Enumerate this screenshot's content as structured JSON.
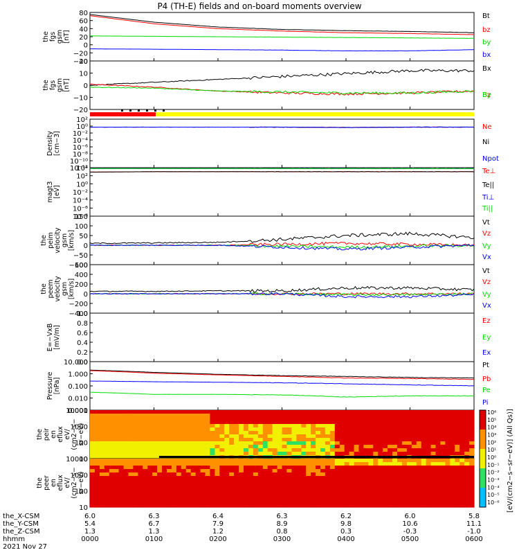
{
  "title": "P4 (TH-E) fields and on-board moments overview",
  "date_label": "2021 Nov 27",
  "colors": {
    "black": "#000000",
    "red": "#ff0000",
    "green": "#00dd00",
    "blue": "#0000ff",
    "yellow": "#ffff00"
  },
  "ephemeris": {
    "rows": [
      {
        "label": "the_X-CSM",
        "values": [
          "6.0",
          "6.3",
          "6.4",
          "6.3",
          "6.2",
          "6.0",
          "5.8"
        ]
      },
      {
        "label": "the_Y-CSM",
        "values": [
          "5.4",
          "6.7",
          "7.9",
          "8.9",
          "9.8",
          "10.6",
          "11.1"
        ]
      },
      {
        "label": "the_Z-CSM",
        "values": [
          "1.3",
          "1.3",
          "1.2",
          "0.8",
          "0.3",
          "-0.3",
          "-1.0"
        ]
      },
      {
        "label": "hhmm",
        "values": [
          "0000",
          "0100",
          "0200",
          "0300",
          "0400",
          "0500",
          "0600"
        ]
      }
    ]
  },
  "chart_data": [
    {
      "type": "line",
      "panel": "fgs_gsm_magnitude",
      "ylabel_lines": [
        "the",
        "fgs",
        "gsm",
        "[nT]"
      ],
      "ylim": [
        -40,
        80
      ],
      "yticks": [
        "80",
        "60",
        "40",
        "20",
        "0",
        "−20",
        "−40"
      ],
      "x_hours": [
        0,
        1,
        2,
        3,
        4,
        5,
        6
      ],
      "series": [
        {
          "name": "Bt",
          "color": "#000000",
          "values": [
            75,
            56,
            44,
            38,
            35,
            33,
            30
          ]
        },
        {
          "name": "bz",
          "color": "#ff0000",
          "values": [
            72,
            52,
            40,
            34,
            30,
            28,
            25
          ]
        },
        {
          "name": "by",
          "color": "#00dd00",
          "values": [
            22,
            21,
            20,
            19,
            18,
            17,
            16
          ]
        },
        {
          "name": "bx",
          "color": "#0000ff",
          "values": [
            -10,
            -11,
            -12,
            -13,
            -15,
            -15,
            -12
          ]
        }
      ]
    },
    {
      "type": "line",
      "panel": "fgs_gsm_components",
      "ylabel_lines": [
        "the",
        "fgs",
        "gsm",
        "[nT]"
      ],
      "ylim": [
        -25,
        25
      ],
      "yticks": [
        "20",
        "10",
        "0",
        "−10",
        "−20"
      ],
      "x_hours": [
        0,
        1,
        2,
        3,
        4,
        5,
        6
      ],
      "series": [
        {
          "name": "Bx",
          "color": "#000000",
          "values": [
            0,
            3,
            6,
            9,
            12,
            15,
            15
          ]
        },
        {
          "name": "Bz",
          "color": "#ff0000",
          "values": [
            1,
            -2,
            -6,
            -8,
            -9,
            -8,
            -6
          ]
        },
        {
          "name": "By",
          "color": "#00dd00",
          "values": [
            -2,
            -3,
            -6,
            -7,
            -8,
            -8,
            -6
          ]
        }
      ]
    },
    {
      "type": "line",
      "panel": "density",
      "ylabel_lines": [
        "Density",
        "[cm−3]"
      ],
      "yscale": "log",
      "yticks": [
        "10²",
        "10⁰",
        "10⁻²",
        "10⁻⁴",
        "10⁻⁶",
        "10⁻⁸",
        "10⁻¹⁰",
        "10⁻¹²"
      ],
      "x_hours": [
        0,
        1,
        2,
        3,
        4,
        5,
        6
      ],
      "series": [
        {
          "name": "Ne",
          "color": "#ff0000",
          "values": [
            0.5,
            0.5,
            0.5,
            0.5,
            0.4,
            0.5,
            0.5
          ]
        },
        {
          "name": "Ni",
          "color": "#000000",
          "values": [
            0.5,
            0.5,
            0.5,
            0.5,
            0.4,
            0.5,
            0.5
          ]
        },
        {
          "name": "Npot",
          "color": "#0000ff",
          "values": [
            0.5,
            0.5,
            0.5,
            0.5,
            0.4,
            0.5,
            0.5
          ]
        }
      ]
    },
    {
      "type": "line",
      "panel": "temperature",
      "ylabel_lines": [
        "magt3",
        "[eV]"
      ],
      "yscale": "log",
      "yticks": [
        "10⁴",
        "10²",
        "10⁰",
        "10⁻²",
        "10⁻⁴",
        "10⁻⁶",
        "10⁻⁸"
      ],
      "x_hours": [
        0,
        1,
        2,
        3,
        4,
        5,
        6
      ],
      "series": [
        {
          "name": "Te⊥",
          "color": "#ff0000",
          "values": [
            800,
            1000,
            1000,
            1000,
            1000,
            1000,
            1000
          ]
        },
        {
          "name": "Te||",
          "color": "#000000",
          "values": [
            800,
            1000,
            1000,
            1000,
            1000,
            1000,
            1000
          ]
        },
        {
          "name": "Ti⊥",
          "color": "#0000ff",
          "values": [
            6000,
            6000,
            6000,
            6000,
            6000,
            6000,
            6000
          ]
        },
        {
          "name": "Ti||",
          "color": "#00dd00",
          "values": [
            6000,
            6000,
            6000,
            6000,
            6000,
            6000,
            6000
          ]
        }
      ]
    },
    {
      "type": "line",
      "panel": "peim_velocity",
      "ylabel_lines": [
        "the",
        "peim",
        "velocity",
        "gsm",
        "[km/s]"
      ],
      "ylim": [
        -100,
        150
      ],
      "yticks": [
        "150",
        "100",
        "50",
        "0",
        "−50",
        "−100"
      ],
      "x_hours": [
        0,
        1,
        2,
        3,
        4,
        5,
        6
      ],
      "series": [
        {
          "name": "Vt",
          "color": "#000000",
          "values": [
            10,
            12,
            15,
            30,
            50,
            60,
            40
          ]
        },
        {
          "name": "Vz",
          "color": "#ff0000",
          "values": [
            0,
            0,
            0,
            5,
            10,
            5,
            0
          ]
        },
        {
          "name": "Vy",
          "color": "#00dd00",
          "values": [
            0,
            0,
            0,
            -5,
            -10,
            -5,
            0
          ]
        },
        {
          "name": "Vx",
          "color": "#0000ff",
          "values": [
            0,
            0,
            0,
            -10,
            -20,
            -10,
            0
          ]
        }
      ]
    },
    {
      "type": "line",
      "panel": "peem_velocity",
      "ylabel_lines": [
        "the",
        "peem",
        "velocity",
        "gsm",
        "[km/s]"
      ],
      "ylim": [
        -400,
        600
      ],
      "yticks": [
        "600",
        "400",
        "200",
        "0",
        "−200",
        "−400"
      ],
      "x_hours": [
        0,
        1,
        2,
        3,
        4,
        5,
        6
      ],
      "series": [
        {
          "name": "Vt",
          "color": "#000000",
          "values": [
            50,
            50,
            60,
            60,
            120,
            120,
            80
          ]
        },
        {
          "name": "Vz",
          "color": "#ff0000",
          "values": [
            0,
            0,
            0,
            0,
            0,
            0,
            0
          ]
        },
        {
          "name": "Vy",
          "color": "#00dd00",
          "values": [
            0,
            0,
            0,
            0,
            -20,
            -20,
            0
          ]
        },
        {
          "name": "Vx",
          "color": "#0000ff",
          "values": [
            0,
            0,
            0,
            0,
            -60,
            -60,
            -20
          ]
        }
      ]
    },
    {
      "type": "line",
      "panel": "electric_field",
      "ylabel_lines": [
        "E=−VxB",
        "[mV/m]"
      ],
      "ylim": [
        0,
        1
      ],
      "yticks": [
        "1.0",
        "0.8",
        "0.6",
        "0.4",
        "0.2",
        "0.0"
      ],
      "x_hours": [
        0,
        6
      ],
      "series": [
        {
          "name": "Ez",
          "color": "#ff0000",
          "values": []
        },
        {
          "name": "Ey",
          "color": "#00dd00",
          "values": []
        },
        {
          "name": "Ex",
          "color": "#0000ff",
          "values": []
        }
      ]
    },
    {
      "type": "line",
      "panel": "pressure",
      "ylabel_lines": [
        "Pressure",
        "[nPa]"
      ],
      "yscale": "log",
      "ylim": [
        0.001,
        10
      ],
      "yticks": [
        "10.000",
        "1.000",
        "0.100",
        "0.010",
        "0.001"
      ],
      "x_hours": [
        0,
        1,
        2,
        3,
        4,
        5,
        6
      ],
      "series": [
        {
          "name": "Pt",
          "color": "#000000",
          "values": [
            2.0,
            1.3,
            0.9,
            0.7,
            0.6,
            0.5,
            0.45
          ]
        },
        {
          "name": "Pb",
          "color": "#ff0000",
          "values": [
            1.8,
            1.1,
            0.8,
            0.6,
            0.45,
            0.4,
            0.35
          ]
        },
        {
          "name": "Pe",
          "color": "#00dd00",
          "values": [
            0.03,
            0.02,
            0.02,
            0.018,
            0.012,
            0.015,
            0.015
          ]
        },
        {
          "name": "Pi",
          "color": "#0000ff",
          "values": [
            0.25,
            0.22,
            0.2,
            0.18,
            0.15,
            0.12,
            0.1
          ]
        }
      ]
    },
    {
      "type": "heatmap",
      "panel": "peir_en_eflux",
      "ylabel_lines": [
        "the",
        "peir",
        "en",
        "eflux",
        "eV/",
        "(cm2−s−",
        "sr−eV)"
      ],
      "yscale": "log",
      "yticks": [
        "10000",
        "1000",
        "100",
        "10"
      ]
    },
    {
      "type": "heatmap",
      "panel": "peer_en_eflux",
      "ylabel_lines": [
        "the",
        "peer",
        "en",
        "eflux",
        "eV/",
        "(cm2−s−",
        "sr−eV)"
      ],
      "yscale": "log",
      "yticks": [
        "10000",
        "1000",
        "100",
        "10"
      ]
    }
  ],
  "colorbar": {
    "ticks": [
      "10⁶",
      "10⁵",
      "10⁴",
      "10³",
      "10²",
      "10¹",
      "10⁰",
      "10⁻¹",
      "10⁻²",
      "10⁻³",
      "10⁻⁴",
      "10⁻⁵",
      "10⁻⁶"
    ],
    "label": "[eV/(cm2−s−sr−eV)] (All Qs)]"
  }
}
